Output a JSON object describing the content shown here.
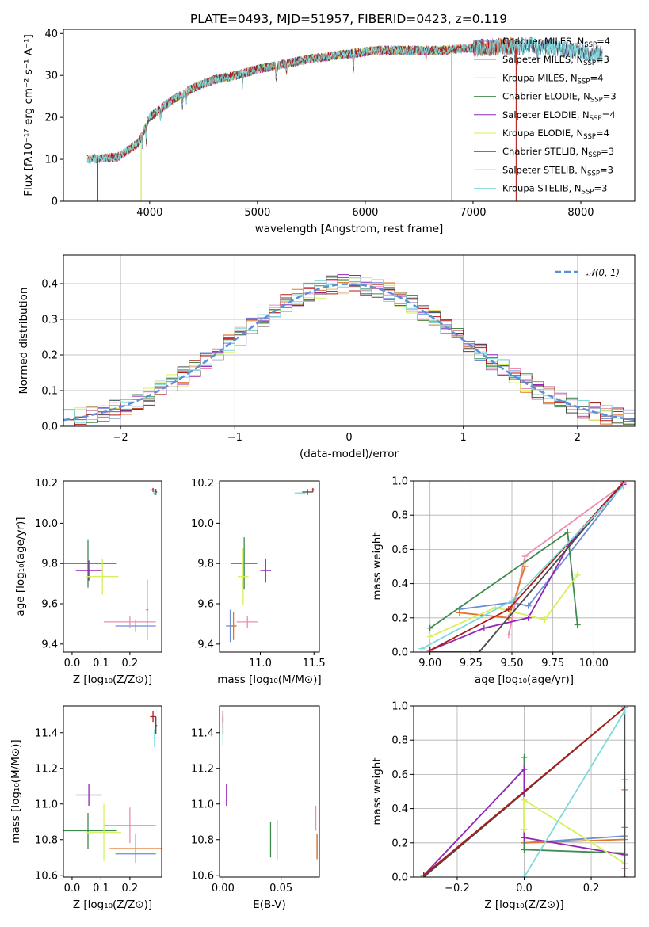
{
  "figure_title": "PLATE=0493, MJD=51957, FIBERID=0423, z=0.119",
  "colors": {
    "chabrier_miles": "#6b8fd6",
    "salpeter_miles": "#f08cb4",
    "kroupa_miles": "#e0762a",
    "chabrier_elodie": "#3f8a4f",
    "salpeter_elodie": "#9126b5",
    "kroupa_elodie": "#d6ef5e",
    "chabrier_stelib": "#4a4a4a",
    "salpeter_stelib": "#b01a1a",
    "kroupa_stelib": "#7fdada",
    "normal_curve": "#5b8fd8"
  },
  "chart_data": [
    {
      "id": "spectrum",
      "type": "line",
      "title": "PLATE=0493, MJD=51957, FIBERID=0423, z=0.119",
      "xlabel": "wavelength [Angstrom, rest frame]",
      "ylabel": "Flux [fλ10⁻¹⁷ erg cm⁻² s⁻¹ A⁻¹]",
      "xlim": [
        3200,
        8500
      ],
      "ylim": [
        0,
        41
      ],
      "xticks": [
        4000,
        5000,
        6000,
        7000,
        8000
      ],
      "yticks": [
        0,
        10,
        20,
        30,
        40
      ],
      "legend_position": "right",
      "series": [
        {
          "name": "Chabrier MILES, N_SSP=4",
          "color": "#6b8fd6",
          "wmin": 3420,
          "wmax": 8200
        },
        {
          "name": "Salpeter MILES, N_SSP=3",
          "color": "#f08cb4",
          "wmin": 3420,
          "wmax": 7400
        },
        {
          "name": "Kroupa MILES, N_SSP=4",
          "color": "#e0762a",
          "wmin": 3420,
          "wmax": 7400
        },
        {
          "name": "Chabrier ELODIE, N_SSP=3",
          "color": "#3f8a4f",
          "wmin": 3920,
          "wmax": 6800
        },
        {
          "name": "Salpeter ELODIE, N_SSP=4",
          "color": "#9126b5",
          "wmin": 3920,
          "wmax": 6800
        },
        {
          "name": "Kroupa ELODIE, N_SSP=4",
          "color": "#d6ef5e",
          "wmin": 3920,
          "wmax": 6800
        },
        {
          "name": "Chabrier STELIB, N_SSP=3",
          "color": "#4a4a4a",
          "wmin": 3420,
          "wmax": 8200
        },
        {
          "name": "Salpeter STELIB, N_SSP=3",
          "color": "#b01a1a",
          "wmin": 3520,
          "wmax": 7400
        },
        {
          "name": "Kroupa STELIB, N_SSP=3",
          "color": "#7fdada",
          "wmin": 3420,
          "wmax": 8200
        }
      ],
      "continuum": {
        "x": [
          3400,
          3700,
          3900,
          4000,
          4200,
          4400,
          4600,
          4800,
          5000,
          5200,
          5500,
          5800,
          6100,
          6400,
          6700,
          7000,
          7300,
          7600,
          7900,
          8200
        ],
        "y": [
          10,
          10.5,
          14,
          20,
          24,
          27,
          29,
          30,
          31.5,
          32.5,
          34,
          35,
          36,
          36,
          36,
          36.5,
          37,
          37,
          36,
          35
        ]
      }
    },
    {
      "id": "residuals",
      "type": "step",
      "xlabel": "(data-model)/error",
      "ylabel": "Normed distribution",
      "xlim": [
        -2.5,
        2.5
      ],
      "ylim": [
        0,
        0.48
      ],
      "xticks": [
        -2,
        -1,
        0,
        1,
        2
      ],
      "yticks": [
        0.0,
        0.1,
        0.2,
        0.3,
        0.4
      ],
      "grid": true,
      "legend_position": "top-right",
      "normal_label": "𝒩(0, 1)",
      "bin_width": 0.1
    },
    {
      "id": "age_vs_Z",
      "type": "errorbar",
      "xlabel": "Z [log₁₀(Z/Z⊙)]",
      "ylabel": "age  [log₁₀(age/yr)]",
      "xlim": [
        -0.03,
        0.31
      ],
      "ylim": [
        9.36,
        10.21
      ],
      "xticks": [
        0.0,
        0.1,
        0.2
      ],
      "yticks": [
        9.4,
        9.6,
        9.8,
        10.0,
        10.2
      ],
      "points": [
        {
          "x": 0.22,
          "y": 9.49,
          "xerr": 0.07,
          "yerr": 0.03,
          "color": "#6b8fd6"
        },
        {
          "x": 0.2,
          "y": 9.51,
          "xerr": 0.09,
          "yerr": 0.03,
          "color": "#f08cb4"
        },
        {
          "x": 0.26,
          "y": 9.57,
          "xerr": 0.004,
          "yerr": 0.15,
          "color": "#e0762a"
        },
        {
          "x": 0.055,
          "y": 9.8,
          "xerr": 0.1,
          "yerr": 0.12,
          "color": "#3f8a4f"
        },
        {
          "x": 0.058,
          "y": 9.765,
          "xerr": 0.045,
          "yerr": 0.05,
          "color": "#9126b5"
        },
        {
          "x": 0.105,
          "y": 9.735,
          "xerr": 0.055,
          "yerr": 0.09,
          "color": "#d6ef5e"
        },
        {
          "x": 0.29,
          "y": 10.155,
          "xerr": 0.004,
          "yerr": 0.015,
          "color": "#4a4a4a"
        },
        {
          "x": 0.28,
          "y": 10.165,
          "xerr": 0.01,
          "yerr": 0.01,
          "color": "#b01a1a"
        },
        {
          "x": 0.285,
          "y": 10.15,
          "xerr": 0.005,
          "yerr": 0.01,
          "color": "#7fdada"
        }
      ]
    },
    {
      "id": "age_vs_mass",
      "type": "errorbar",
      "xlabel": "mass [log₁₀(M/M⊙)]",
      "ylabel": "",
      "xlim": [
        10.62,
        11.55
      ],
      "ylim": [
        9.36,
        10.21
      ],
      "xticks": [
        11.0,
        11.5
      ],
      "yticks": [
        9.4,
        9.6,
        9.8,
        10.0,
        10.2
      ],
      "points": [
        {
          "x": 10.72,
          "y": 9.49,
          "xerr": 0.04,
          "yerr": 0.08,
          "color": "#6b8fd6"
        },
        {
          "x": 10.88,
          "y": 9.51,
          "xerr": 0.1,
          "yerr": 0.03,
          "color": "#f08cb4"
        },
        {
          "x": 10.75,
          "y": 9.49,
          "xerr": 0.03,
          "yerr": 0.07,
          "color": "#e0762a"
        },
        {
          "x": 10.85,
          "y": 9.8,
          "xerr": 0.12,
          "yerr": 0.13,
          "color": "#3f8a4f"
        },
        {
          "x": 11.05,
          "y": 9.765,
          "xerr": 0.05,
          "yerr": 0.06,
          "color": "#9126b5"
        },
        {
          "x": 10.84,
          "y": 9.735,
          "xerr": 0.05,
          "yerr": 0.14,
          "color": "#d6ef5e"
        },
        {
          "x": 11.44,
          "y": 10.155,
          "xerr": 0.05,
          "yerr": 0.015,
          "color": "#4a4a4a"
        },
        {
          "x": 11.49,
          "y": 10.165,
          "xerr": 0.02,
          "yerr": 0.01,
          "color": "#b01a1a"
        },
        {
          "x": 11.37,
          "y": 10.15,
          "xerr": 0.05,
          "yerr": 0.01,
          "color": "#7fdada"
        }
      ]
    },
    {
      "id": "weight_vs_age",
      "type": "line",
      "xlabel": "age  [log₁₀(age/yr)]",
      "ylabel": "mass weight",
      "xlim": [
        8.9,
        10.25
      ],
      "ylim": [
        0.0,
        1.0
      ],
      "xticks": [
        9.0,
        9.25,
        9.5,
        9.75,
        10.0
      ],
      "yticks": [
        0.0,
        0.2,
        0.4,
        0.6,
        0.8,
        1.0
      ],
      "grid": true,
      "series": [
        {
          "color": "#6b8fd6",
          "x": [
            9.18,
            9.5,
            9.6,
            10.18
          ],
          "y": [
            0.25,
            0.29,
            0.27,
            0.98
          ]
        },
        {
          "color": "#f08cb4",
          "x": [
            9.48,
            9.58,
            10.18
          ],
          "y": [
            0.1,
            0.56,
            0.98
          ]
        },
        {
          "color": "#e0762a",
          "x": [
            9.18,
            9.48,
            9.58
          ],
          "y": [
            0.23,
            0.2,
            0.5
          ]
        },
        {
          "color": "#3f8a4f",
          "x": [
            9.0,
            9.84,
            9.9
          ],
          "y": [
            0.14,
            0.7,
            0.16
          ]
        },
        {
          "color": "#9126b5",
          "x": [
            9.0,
            9.33,
            9.6,
            9.85,
            10.18
          ],
          "y": [
            0.01,
            0.14,
            0.2,
            0.63,
            0.98
          ]
        },
        {
          "color": "#d6ef5e",
          "x": [
            9.0,
            9.4,
            9.7,
            9.9
          ],
          "y": [
            0.09,
            0.26,
            0.19,
            0.45
          ]
        },
        {
          "color": "#4a4a4a",
          "x": [
            9.0,
            9.3,
            10.18
          ],
          "y": [
            0.0,
            0.0,
            0.99
          ]
        },
        {
          "color": "#b01a1a",
          "x": [
            9.0,
            9.48,
            10.18
          ],
          "y": [
            0.01,
            0.25,
            0.99
          ]
        },
        {
          "color": "#7fdada",
          "x": [
            8.95,
            9.5,
            10.18
          ],
          "y": [
            0.02,
            0.3,
            0.97
          ]
        }
      ]
    },
    {
      "id": "mass_vs_Z",
      "type": "errorbar",
      "xlabel": "Z [log₁₀(Z/Z⊙)]",
      "ylabel": "mass [log₁₀(M/M⊙)]",
      "xlim": [
        -0.03,
        0.31
      ],
      "ylim": [
        10.59,
        11.55
      ],
      "xticks": [
        0.0,
        0.1,
        0.2
      ],
      "yticks": [
        10.6,
        10.8,
        11.0,
        11.2,
        11.4
      ],
      "points": [
        {
          "x": 0.22,
          "y": 10.72,
          "xerr": 0.07,
          "yerr": 0.03,
          "color": "#6b8fd6"
        },
        {
          "x": 0.2,
          "y": 10.88,
          "xerr": 0.09,
          "yerr": 0.1,
          "color": "#f08cb4"
        },
        {
          "x": 0.22,
          "y": 10.75,
          "xerr": 0.09,
          "yerr": 0.08,
          "color": "#e0762a"
        },
        {
          "x": 0.055,
          "y": 10.85,
          "xerr": 0.1,
          "yerr": 0.1,
          "color": "#3f8a4f"
        },
        {
          "x": 0.058,
          "y": 11.05,
          "xerr": 0.045,
          "yerr": 0.06,
          "color": "#9126b5"
        },
        {
          "x": 0.11,
          "y": 10.84,
          "xerr": 0.06,
          "yerr": 0.16,
          "color": "#d6ef5e"
        },
        {
          "x": 0.29,
          "y": 11.44,
          "xerr": 0.004,
          "yerr": 0.05,
          "color": "#4a4a4a"
        },
        {
          "x": 0.28,
          "y": 11.49,
          "xerr": 0.01,
          "yerr": 0.03,
          "color": "#b01a1a"
        },
        {
          "x": 0.285,
          "y": 11.37,
          "xerr": 0.01,
          "yerr": 0.05,
          "color": "#7fdada"
        }
      ]
    },
    {
      "id": "mass_vs_ebv",
      "type": "errorbar",
      "xlabel": "E(B-V)",
      "ylabel": "",
      "xlim": [
        -0.003,
        0.083
      ],
      "ylim": [
        10.59,
        11.55
      ],
      "xticks": [
        0.0,
        0.05
      ],
      "yticks": [
        10.6,
        10.8,
        11.0,
        11.2,
        11.4
      ],
      "points": [
        {
          "x": 0.081,
          "y": 10.76,
          "xerr": 0.0,
          "yerr": 0.07,
          "color": "#6b8fd6"
        },
        {
          "x": 0.08,
          "y": 10.92,
          "xerr": 0.0,
          "yerr": 0.07,
          "color": "#f08cb4"
        },
        {
          "x": 0.081,
          "y": 10.76,
          "xerr": 0.0,
          "yerr": 0.07,
          "color": "#e0762a"
        },
        {
          "x": 0.041,
          "y": 10.8,
          "xerr": 0.0,
          "yerr": 0.1,
          "color": "#3f8a4f"
        },
        {
          "x": 0.003,
          "y": 11.05,
          "xerr": 0.0,
          "yerr": 0.06,
          "color": "#9126b5"
        },
        {
          "x": 0.047,
          "y": 10.8,
          "xerr": 0.0,
          "yerr": 0.11,
          "color": "#d6ef5e"
        },
        {
          "x": 0.0,
          "y": 11.44,
          "xerr": 0.0,
          "yerr": 0.05,
          "color": "#4a4a4a"
        },
        {
          "x": 0.0,
          "y": 11.49,
          "xerr": 0.0,
          "yerr": 0.03,
          "color": "#b01a1a"
        },
        {
          "x": 0.0,
          "y": 11.38,
          "xerr": 0.0,
          "yerr": 0.05,
          "color": "#7fdada"
        }
      ]
    },
    {
      "id": "weight_vs_Z",
      "type": "line",
      "xlabel": "Z [log₁₀(Z/Z⊙)]",
      "ylabel": "mass weight",
      "xlim": [
        -0.33,
        0.33
      ],
      "ylim": [
        0.0,
        1.0
      ],
      "xticks": [
        -0.2,
        0.0,
        0.2
      ],
      "yticks": [
        0.0,
        0.2,
        0.4,
        0.6,
        0.8,
        1.0
      ],
      "grid": true,
      "series": [
        {
          "color": "#6b8fd6",
          "x": [
            0.0,
            0.3,
            0.3
          ],
          "y": [
            0.2,
            0.24,
            0.29
          ]
        },
        {
          "color": "#f08cb4",
          "x": [
            0.3,
            0.3
          ],
          "y": [
            0.05,
            0.57
          ]
        },
        {
          "color": "#e0762a",
          "x": [
            0.0,
            0.3,
            0.3
          ],
          "y": [
            0.2,
            0.22,
            0.51
          ]
        },
        {
          "color": "#3f8a4f",
          "x": [
            0.0,
            0.0,
            0.3
          ],
          "y": [
            0.7,
            0.16,
            0.14
          ]
        },
        {
          "color": "#9126b5",
          "x": [
            -0.3,
            0.0,
            0.0,
            0.3
          ],
          "y": [
            0.01,
            0.63,
            0.23,
            0.13
          ]
        },
        {
          "color": "#d6ef5e",
          "x": [
            0.0,
            0.0,
            0.3
          ],
          "y": [
            0.28,
            0.45,
            0.08
          ]
        },
        {
          "color": "#4a4a4a",
          "x": [
            -0.3,
            0.3,
            0.3
          ],
          "y": [
            0.0,
            0.99,
            0.0
          ]
        },
        {
          "color": "#b01a1a",
          "x": [
            -0.3,
            0.3
          ],
          "y": [
            0.01,
            0.99
          ]
        },
        {
          "color": "#7fdada",
          "x": [
            0.0,
            0.3
          ],
          "y": [
            0.0,
            0.97
          ]
        }
      ]
    }
  ]
}
